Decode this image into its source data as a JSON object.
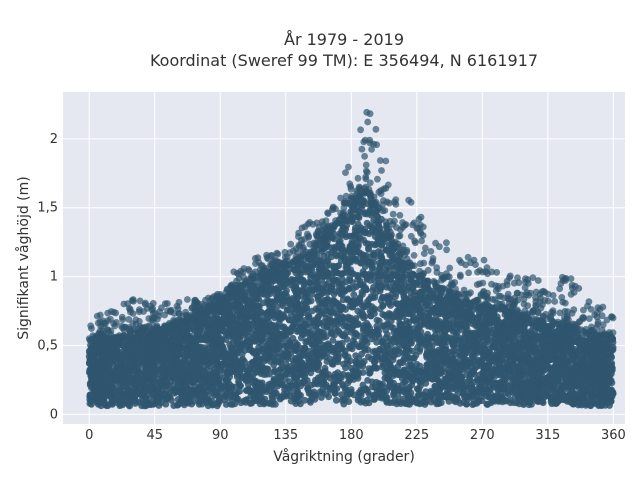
{
  "chart_data": {
    "type": "scatter",
    "title": "År 1979 - 2019",
    "subtitle": "Koordinat (Sweref 99 TM): E 356494, N 6161917",
    "xlabel": "Vågriktning (grader)",
    "ylabel": "Signifikant våghöjd (m)",
    "xlim": [
      -18,
      368
    ],
    "ylim": [
      -0.07,
      2.34
    ],
    "x_ticks": [
      0,
      45,
      90,
      135,
      180,
      225,
      270,
      315,
      360
    ],
    "x_tick_labels": [
      "0",
      "45",
      "90",
      "135",
      "180",
      "225",
      "270",
      "315",
      "360"
    ],
    "y_ticks": [
      0,
      0.5,
      1,
      1.5,
      2
    ],
    "y_tick_labels": [
      "0",
      "0,5",
      "1",
      "1,5",
      "2"
    ],
    "grid": true,
    "marker_color": "#2f566e",
    "background_color": "#e5e8f0",
    "envelope": {
      "direction_deg": [
        0,
        10,
        20,
        30,
        40,
        50,
        60,
        70,
        80,
        90,
        100,
        110,
        120,
        130,
        140,
        150,
        160,
        170,
        180,
        190,
        200,
        210,
        220,
        230,
        240,
        250,
        260,
        270,
        280,
        290,
        300,
        310,
        320,
        330,
        340,
        350,
        360
      ],
      "min_height_m": [
        0.06,
        0.06,
        0.06,
        0.06,
        0.06,
        0.06,
        0.06,
        0.06,
        0.06,
        0.06,
        0.07,
        0.07,
        0.07,
        0.07,
        0.07,
        0.07,
        0.07,
        0.07,
        0.07,
        0.07,
        0.07,
        0.07,
        0.07,
        0.07,
        0.07,
        0.07,
        0.07,
        0.07,
        0.07,
        0.07,
        0.07,
        0.07,
        0.07,
        0.07,
        0.06,
        0.06,
        0.06
      ],
      "dense_top_m": [
        0.55,
        0.55,
        0.56,
        0.58,
        0.6,
        0.62,
        0.65,
        0.7,
        0.75,
        0.82,
        0.9,
        0.97,
        1.02,
        1.05,
        1.1,
        1.18,
        1.26,
        1.38,
        1.55,
        1.62,
        1.48,
        1.25,
        1.1,
        0.98,
        0.92,
        0.88,
        0.82,
        0.8,
        0.77,
        0.74,
        0.7,
        0.68,
        0.66,
        0.64,
        0.6,
        0.58,
        0.55
      ],
      "max_height_m": [
        0.77,
        0.72,
        0.8,
        0.84,
        0.84,
        0.8,
        0.83,
        0.84,
        0.84,
        0.9,
        1.05,
        1.12,
        1.15,
        1.2,
        1.3,
        1.4,
        1.42,
        1.55,
        1.9,
        2.22,
        2.1,
        1.7,
        1.62,
        1.45,
        1.3,
        1.2,
        1.15,
        1.13,
        1.1,
        1.05,
        1.0,
        1.0,
        1.0,
        1.0,
        0.9,
        0.82,
        0.72
      ]
    }
  }
}
